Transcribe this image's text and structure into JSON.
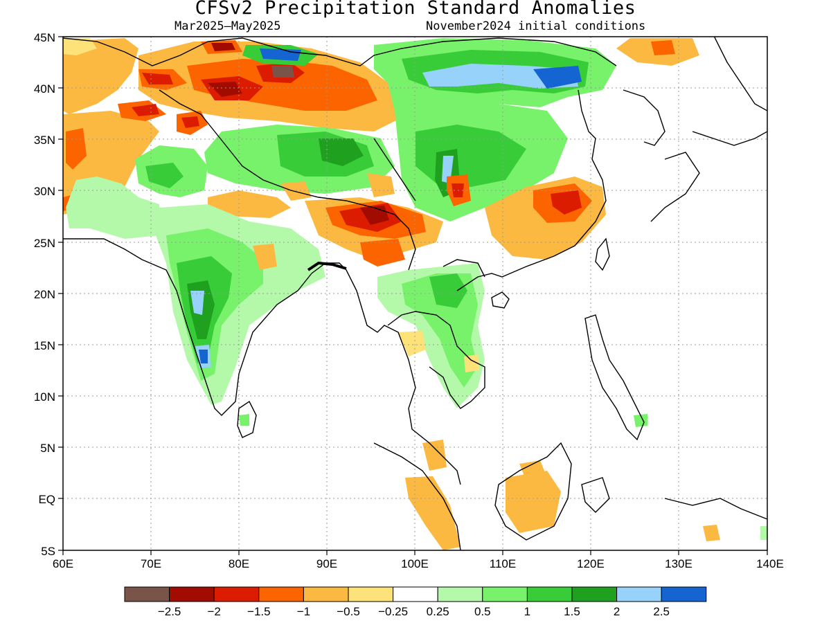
{
  "title": "CFSv2 Precipitation Standard Anomalies",
  "subtitle_left": "Mar2025–May2025",
  "subtitle_right": "November2024 initial conditions",
  "map": {
    "lon_range": [
      60,
      140
    ],
    "lat_range": [
      -5,
      45
    ],
    "x_ticks": [
      "60E",
      "70E",
      "80E",
      "90E",
      "100E",
      "110E",
      "120E",
      "130E",
      "140E"
    ],
    "y_ticks": [
      "45N",
      "40N",
      "35N",
      "30N",
      "25N",
      "20N",
      "15N",
      "10N",
      "5N",
      "EQ",
      "5S"
    ],
    "gridlines": "dotted"
  },
  "legend": {
    "colors": [
      "#7a5448",
      "#a10b00",
      "#dc1c00",
      "#fc6400",
      "#fcb942",
      "#fde279",
      "#ffffff",
      "#b4f9a9",
      "#78f16b",
      "#38cc38",
      "#1fa11f",
      "#96d2fa",
      "#1464d2"
    ],
    "labels": [
      "−2.5",
      "−2",
      "−1.5",
      "−1",
      "−0.5",
      "−0.25",
      "0.25",
      "0.5",
      "1",
      "1.5",
      "2",
      "2.5"
    ]
  }
}
